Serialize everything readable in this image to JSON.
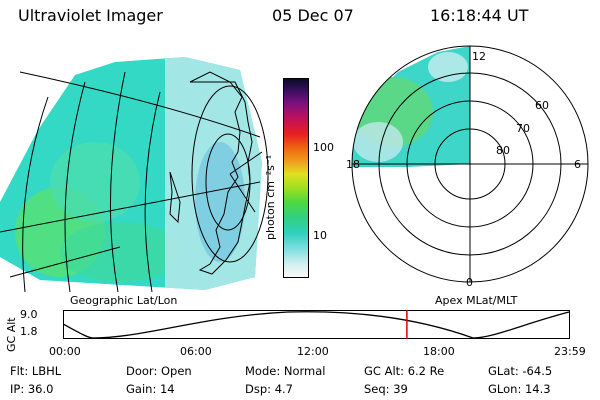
{
  "header": {
    "instrument": "Ultraviolet Imager",
    "date": "05 Dec 07",
    "time": "16:18:44 UT"
  },
  "colorbar": {
    "unit_label": "photon cm⁻²s⁻¹",
    "ticks": [
      "100",
      "10"
    ]
  },
  "left_panel": {
    "caption": "Geographic Lat/Lon"
  },
  "right_panel": {
    "caption": "Apex MLat/MLT",
    "mlt_labels": {
      "top": "12",
      "left": "18",
      "right": "6",
      "bottom": "0"
    },
    "lat_labels": [
      "60",
      "70",
      "80"
    ]
  },
  "timeline": {
    "ylabel": "GC Alt",
    "y_ticks": [
      "9.0",
      "1.8"
    ],
    "x_ticks": [
      "00:00",
      "06:00",
      "12:00",
      "18:00",
      "23:59"
    ],
    "current_time_hours": 16.31,
    "marker_color": "#e00000"
  },
  "footer": {
    "row1": [
      {
        "label": "Flt:",
        "value": "LBHL"
      },
      {
        "label": "Door:",
        "value": "Open"
      },
      {
        "label": "Mode:",
        "value": "Normal"
      },
      {
        "label": "GC Alt:",
        "value": "6.2 Re"
      },
      {
        "label": "GLat:",
        "value": "-64.5"
      }
    ],
    "row2": [
      {
        "label": "IP:",
        "value": "36.0"
      },
      {
        "label": "Gain:",
        "value": "14"
      },
      {
        "label": "Dsp:",
        "value": "4.7"
      },
      {
        "label": "Seq:",
        "value": "39"
      },
      {
        "label": "GLon:",
        "value": "14.3"
      }
    ]
  }
}
